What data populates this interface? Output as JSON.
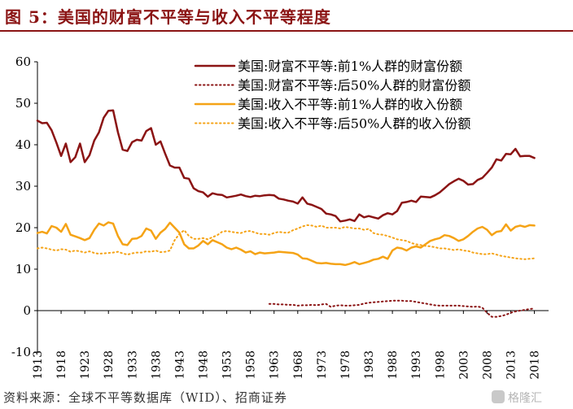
{
  "figure": {
    "title": "图 5：美国的财富不平等与收入不平等程度",
    "source": "资料来源：全球不平等数据库（WID）、招商证券",
    "watermark": "格隆汇"
  },
  "colors": {
    "title": "#8b1414",
    "wealth": "#8b1414",
    "income": "#f5a316",
    "axis": "#000000"
  },
  "chart_data": {
    "type": "line",
    "title": "",
    "xlabel": "",
    "ylabel": "",
    "xlim": [
      1913,
      2021
    ],
    "ylim": [
      -10,
      60
    ],
    "yticks": [
      -10,
      0,
      10,
      20,
      30,
      40,
      50,
      60
    ],
    "xticks": [
      1913,
      1918,
      1923,
      1928,
      1933,
      1938,
      1943,
      1948,
      1953,
      1958,
      1963,
      1968,
      1973,
      1978,
      1983,
      1988,
      1993,
      1998,
      2003,
      2008,
      2013,
      2018
    ],
    "grid": false,
    "legend_position": "top-right",
    "series": [
      {
        "name": "美国:财富不平等:前1%人群的财富份额",
        "color": "#8b1414",
        "style": "solid",
        "x": [
          1913,
          1914,
          1915,
          1916,
          1917,
          1918,
          1919,
          1920,
          1921,
          1922,
          1923,
          1924,
          1925,
          1926,
          1927,
          1928,
          1929,
          1930,
          1931,
          1932,
          1933,
          1934,
          1935,
          1936,
          1937,
          1938,
          1939,
          1940,
          1941,
          1942,
          1943,
          1944,
          1945,
          1946,
          1947,
          1948,
          1949,
          1950,
          1951,
          1952,
          1953,
          1954,
          1955,
          1956,
          1957,
          1958,
          1959,
          1960,
          1961,
          1962,
          1963,
          1964,
          1965,
          1966,
          1967,
          1968,
          1969,
          1970,
          1971,
          1972,
          1973,
          1974,
          1975,
          1976,
          1977,
          1978,
          1979,
          1980,
          1981,
          1982,
          1983,
          1984,
          1985,
          1986,
          1987,
          1988,
          1989,
          1990,
          1991,
          1992,
          1993,
          1994,
          1995,
          1996,
          1997,
          1998,
          1999,
          2000,
          2001,
          2002,
          2003,
          2004,
          2005,
          2006,
          2007,
          2008,
          2009,
          2010,
          2011,
          2012,
          2013,
          2014,
          2015,
          2016,
          2017,
          2018
        ],
        "values": [
          45.8,
          45.2,
          45.3,
          43.5,
          40.5,
          37.3,
          40.3,
          35.8,
          37.0,
          40.3,
          35.8,
          37.5,
          41.0,
          43.0,
          46.5,
          48.2,
          48.3,
          43.0,
          38.8,
          38.5,
          40.6,
          41.2,
          41.0,
          43.3,
          44.0,
          40.0,
          40.8,
          37.8,
          35.0,
          34.5,
          34.5,
          32.0,
          31.8,
          29.5,
          28.8,
          28.5,
          27.5,
          28.3,
          28.0,
          27.9,
          27.3,
          27.5,
          27.7,
          28.0,
          27.6,
          27.4,
          27.7,
          27.6,
          27.8,
          27.9,
          27.8,
          27.0,
          26.8,
          26.5,
          26.3,
          25.8,
          27.3,
          25.8,
          25.5,
          25.0,
          24.5,
          23.4,
          23.2,
          22.8,
          21.5,
          21.7,
          22.0,
          21.6,
          23.2,
          22.5,
          22.8,
          22.5,
          22.2,
          23.0,
          23.5,
          23.2,
          24.0,
          26.0,
          26.2,
          26.5,
          26.2,
          27.5,
          27.4,
          27.3,
          27.8,
          28.5,
          29.5,
          30.5,
          31.2,
          31.8,
          31.3,
          30.4,
          30.5,
          31.5,
          32.0,
          33.2,
          34.5,
          36.5,
          36.2,
          37.8,
          37.7,
          39.0,
          37.2,
          37.3,
          37.3,
          36.8
        ]
      },
      {
        "name": "美国:财富不平等:后50%人群的财富份额",
        "color": "#8b1414",
        "style": "dotted",
        "x": [
          1962,
          1963,
          1964,
          1965,
          1966,
          1967,
          1968,
          1969,
          1970,
          1971,
          1972,
          1973,
          1974,
          1975,
          1976,
          1977,
          1978,
          1979,
          1980,
          1981,
          1982,
          1983,
          1984,
          1985,
          1986,
          1987,
          1988,
          1989,
          1990,
          1991,
          1992,
          1993,
          1994,
          1995,
          1996,
          1997,
          1998,
          1999,
          2000,
          2001,
          2002,
          2003,
          2004,
          2005,
          2006,
          2007,
          2008,
          2009,
          2010,
          2011,
          2012,
          2013,
          2014,
          2015,
          2016,
          2017,
          2018
        ],
        "values": [
          1.6,
          1.6,
          1.5,
          1.5,
          1.4,
          1.4,
          1.2,
          1.3,
          1.3,
          1.4,
          1.3,
          1.5,
          1.6,
          0.9,
          1.2,
          1.3,
          1.2,
          1.2,
          1.3,
          1.4,
          1.7,
          1.9,
          2.0,
          2.1,
          2.2,
          2.3,
          2.4,
          2.4,
          2.4,
          2.3,
          2.3,
          2.1,
          1.9,
          1.7,
          1.5,
          1.3,
          1.2,
          1.2,
          1.2,
          1.2,
          1.2,
          1.1,
          1.0,
          0.9,
          1.0,
          0.7,
          -0.5,
          -1.5,
          -1.5,
          -1.3,
          -1.0,
          -0.5,
          -0.2,
          0.0,
          0.2,
          0.4,
          0.5
        ]
      },
      {
        "name": "美国:收入不平等:前1%人群的收入份额",
        "color": "#f5a316",
        "style": "solid",
        "x": [
          1913,
          1914,
          1915,
          1916,
          1917,
          1918,
          1919,
          1920,
          1921,
          1922,
          1923,
          1924,
          1925,
          1926,
          1927,
          1928,
          1929,
          1930,
          1931,
          1932,
          1933,
          1934,
          1935,
          1936,
          1937,
          1938,
          1939,
          1940,
          1941,
          1942,
          1943,
          1944,
          1945,
          1946,
          1947,
          1948,
          1949,
          1950,
          1951,
          1952,
          1953,
          1954,
          1955,
          1956,
          1957,
          1958,
          1959,
          1960,
          1961,
          1962,
          1963,
          1964,
          1965,
          1966,
          1967,
          1968,
          1969,
          1970,
          1971,
          1972,
          1973,
          1974,
          1975,
          1976,
          1977,
          1978,
          1979,
          1980,
          1981,
          1982,
          1983,
          1984,
          1985,
          1986,
          1987,
          1988,
          1989,
          1990,
          1991,
          1992,
          1993,
          1994,
          1995,
          1996,
          1997,
          1998,
          1999,
          2000,
          2001,
          2002,
          2003,
          2004,
          2005,
          2006,
          2007,
          2008,
          2009,
          2010,
          2011,
          2012,
          2013,
          2014,
          2015,
          2016,
          2017,
          2018
        ],
        "values": [
          18.7,
          19.0,
          18.6,
          20.4,
          20.0,
          19.0,
          20.9,
          18.3,
          17.9,
          17.5,
          17.0,
          17.5,
          19.5,
          21.0,
          20.5,
          21.3,
          21.0,
          18.0,
          16.0,
          15.8,
          17.3,
          17.4,
          18.0,
          19.8,
          19.3,
          17.3,
          18.8,
          19.7,
          21.2,
          20.0,
          18.8,
          16.0,
          15.0,
          15.0,
          15.7,
          16.8,
          16.0,
          17.0,
          16.5,
          16.0,
          15.2,
          14.8,
          15.2,
          14.7,
          14.0,
          14.3,
          13.6,
          14.0,
          13.8,
          13.9,
          14.0,
          14.2,
          14.1,
          14.0,
          13.9,
          13.5,
          12.6,
          12.5,
          12.0,
          11.5,
          11.4,
          11.5,
          11.3,
          11.2,
          11.2,
          11.0,
          11.3,
          11.7,
          11.2,
          11.5,
          11.8,
          12.3,
          12.5,
          13.0,
          12.5,
          14.5,
          15.2,
          15.0,
          14.5,
          15.2,
          15.5,
          15.2,
          16.0,
          16.8,
          17.2,
          17.5,
          18.2,
          18.0,
          17.5,
          16.8,
          17.2,
          18.0,
          19.0,
          19.8,
          20.2,
          19.5,
          18.2,
          19.0,
          19.2,
          20.8,
          19.3,
          20.2,
          20.5,
          20.2,
          20.6,
          20.5
        ]
      },
      {
        "name": "美国:收入不平等:后50%人群的收入份额",
        "color": "#f5a316",
        "style": "dotted",
        "x": [
          1913,
          1914,
          1915,
          1916,
          1917,
          1918,
          1919,
          1920,
          1921,
          1922,
          1923,
          1924,
          1925,
          1926,
          1927,
          1928,
          1929,
          1930,
          1931,
          1932,
          1933,
          1934,
          1935,
          1936,
          1937,
          1938,
          1939,
          1940,
          1941,
          1942,
          1943,
          1944,
          1945,
          1946,
          1947,
          1948,
          1949,
          1950,
          1951,
          1952,
          1953,
          1954,
          1955,
          1956,
          1957,
          1958,
          1959,
          1960,
          1961,
          1962,
          1963,
          1964,
          1965,
          1966,
          1967,
          1968,
          1969,
          1970,
          1971,
          1972,
          1973,
          1974,
          1975,
          1976,
          1977,
          1978,
          1979,
          1980,
          1981,
          1982,
          1983,
          1984,
          1985,
          1986,
          1987,
          1988,
          1989,
          1990,
          1991,
          1992,
          1993,
          1994,
          1995,
          1996,
          1997,
          1998,
          1999,
          2000,
          2001,
          2002,
          2003,
          2004,
          2005,
          2006,
          2007,
          2008,
          2009,
          2010,
          2011,
          2012,
          2013,
          2014,
          2015,
          2016,
          2017,
          2018
        ],
        "values": [
          15.0,
          15.2,
          15.0,
          14.7,
          14.5,
          14.8,
          14.7,
          14.2,
          14.5,
          14.3,
          14.0,
          14.3,
          13.9,
          13.7,
          13.8,
          13.9,
          14.0,
          14.2,
          13.8,
          13.5,
          13.8,
          14.0,
          14.0,
          14.3,
          14.2,
          14.5,
          14.1,
          14.2,
          14.5,
          17.0,
          18.5,
          19.4,
          18.0,
          17.3,
          17.3,
          17.5,
          17.2,
          17.7,
          18.2,
          19.0,
          19.2,
          19.0,
          18.8,
          18.7,
          19.1,
          19.2,
          18.8,
          18.5,
          18.5,
          18.3,
          18.7,
          19.0,
          18.8,
          18.8,
          19.4,
          19.8,
          20.3,
          20.6,
          20.5,
          20.2,
          20.5,
          20.0,
          20.0,
          20.0,
          19.8,
          20.2,
          20.0,
          19.8,
          19.8,
          19.5,
          19.7,
          18.7,
          18.4,
          18.3,
          18.0,
          17.6,
          17.2,
          17.0,
          16.8,
          16.3,
          16.0,
          15.8,
          15.6,
          15.5,
          15.3,
          15.0,
          15.0,
          14.8,
          14.6,
          14.8,
          14.5,
          14.4,
          14.0,
          13.8,
          13.6,
          13.6,
          13.8,
          13.5,
          13.2,
          13.0,
          12.8,
          12.6,
          12.5,
          12.4,
          12.5,
          12.6
        ]
      }
    ]
  }
}
